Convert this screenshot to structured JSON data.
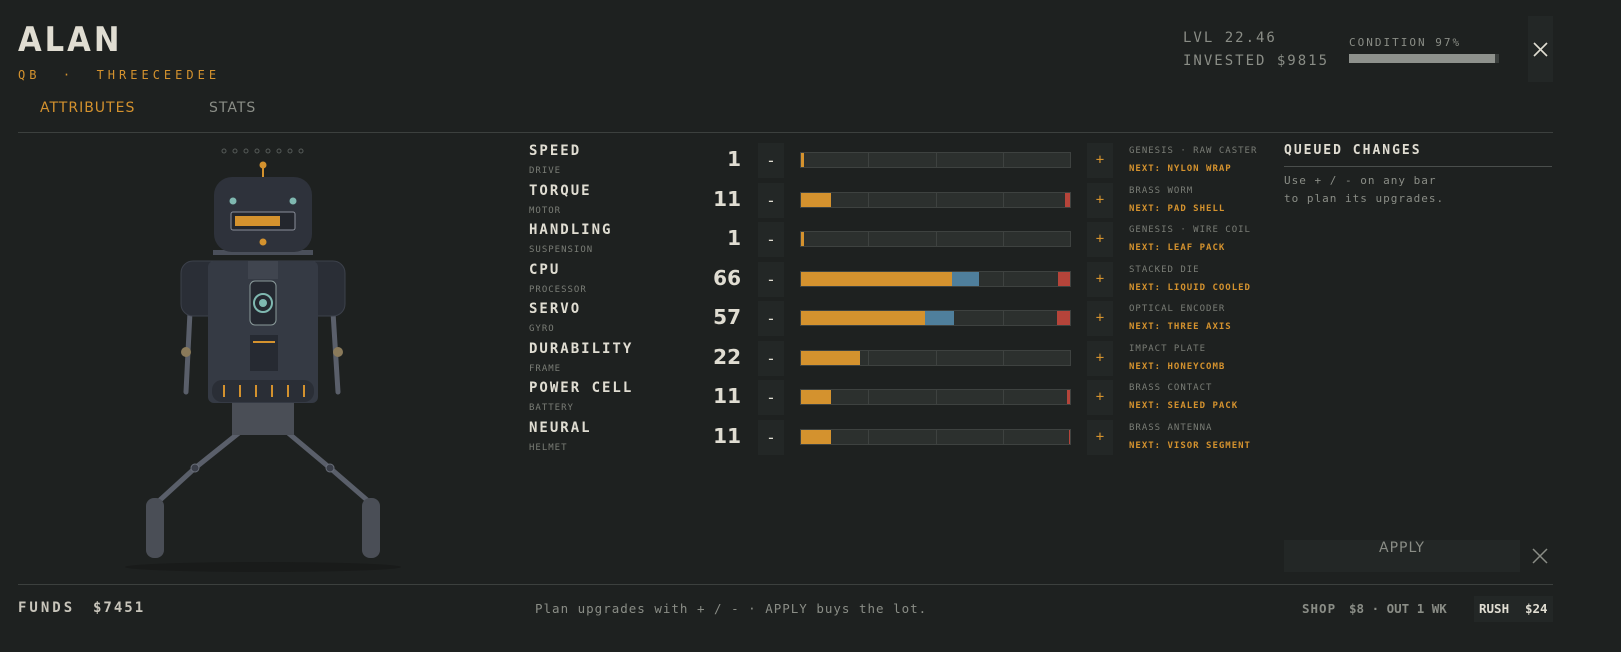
{
  "header": {
    "name": "ALAN",
    "subtitle": "QB  ·  THREECEEDEE",
    "level": "LVL 22.46",
    "invested": "INVESTED $9815",
    "condition": {
      "label": "CONDITION 97%",
      "value": 97
    }
  },
  "tabs": {
    "items": [
      "ATTRIBUTES",
      "STATS"
    ],
    "active": 0
  },
  "controls": {
    "minus": "-",
    "plus": "+"
  },
  "colors": {
    "base": "#d4922e",
    "queued": "#4f7f9c",
    "wear": "#b5443a"
  },
  "attributes": [
    {
      "name": "SPEED",
      "system": "DRIVE",
      "value": 1,
      "base": 1,
      "wear": 0,
      "part": "GENESIS · RAW CASTER",
      "next": "NEXT: NYLON WRAP"
    },
    {
      "name": "TORQUE",
      "system": "MOTOR",
      "value": 11,
      "base": 11,
      "wear": 2,
      "part": "BRASS WORM",
      "next": "NEXT: PAD SHELL"
    },
    {
      "name": "HANDLING",
      "system": "SUSPENSION",
      "value": 1,
      "base": 1,
      "wear": 0,
      "part": "GENESIS · WIRE COIL",
      "next": "NEXT: LEAF PACK"
    },
    {
      "name": "CPU",
      "system": "PROCESSOR",
      "value": 66,
      "base": 56,
      "wear": 4.5,
      "part": "STACKED DIE",
      "next": "NEXT: LIQUID COOLED"
    },
    {
      "name": "SERVO",
      "system": "GYRO",
      "value": 57,
      "base": 46,
      "wear": 5,
      "part": "OPTICAL ENCODER",
      "next": "NEXT: THREE AXIS"
    },
    {
      "name": "DURABILITY",
      "system": "FRAME",
      "value": 22,
      "base": 22,
      "wear": 0,
      "part": "IMPACT PLATE",
      "next": "NEXT: HONEYCOMB"
    },
    {
      "name": "POWER CELL",
      "system": "BATTERY",
      "value": 11,
      "base": 11,
      "wear": 1,
      "part": "BRASS CONTACT",
      "next": "NEXT: SEALED PACK"
    },
    {
      "name": "NEURAL",
      "system": "HELMET",
      "value": 11,
      "base": 11,
      "wear": 0.5,
      "part": "BRASS ANTENNA",
      "next": "NEXT: VISOR SEGMENT"
    }
  ],
  "queued": {
    "title": "QUEUED CHANGES",
    "hint": [
      "Use + / - on any bar",
      "to plan its upgrades."
    ],
    "apply": "APPLY"
  },
  "footer": {
    "funds_label": "FUNDS",
    "funds": "$7451",
    "hint": "Plan upgrades with + / - · APPLY buys the lot.",
    "shop_label": "SHOP",
    "shop": "$8 · OUT 1 WK",
    "rush_label": "RUSH",
    "rush": "$24"
  }
}
